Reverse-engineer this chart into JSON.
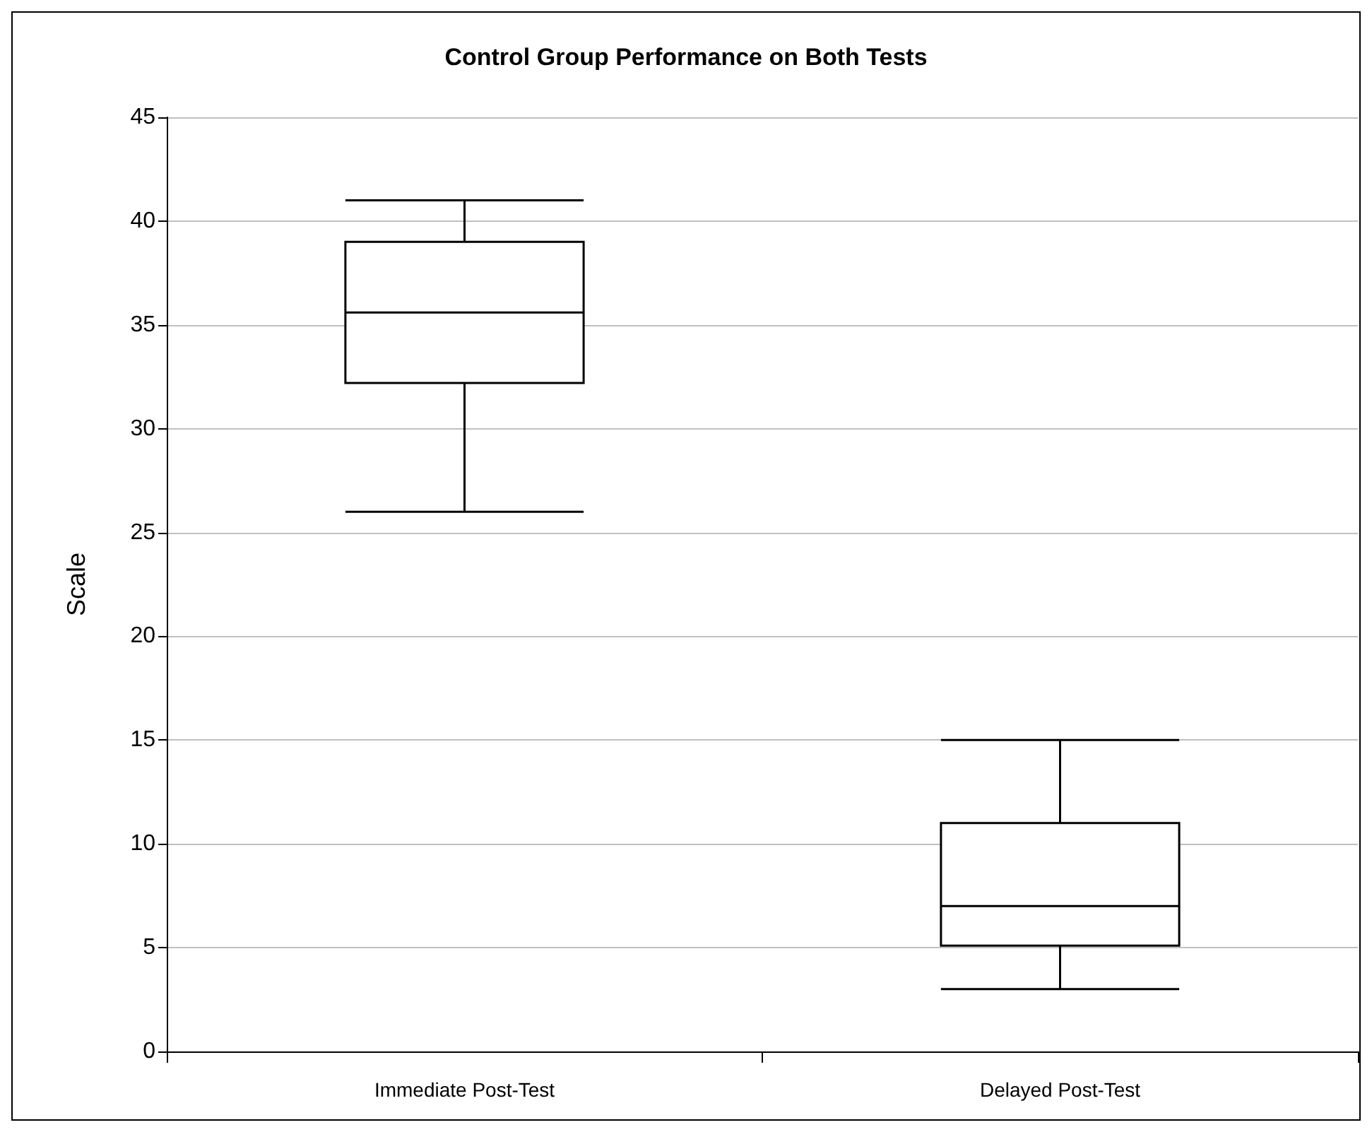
{
  "chart_data": {
    "type": "box",
    "title": "Control Group Performance on Both Tests",
    "ylabel": "Scale",
    "categories": [
      "Immediate Post-Test",
      "Delayed Post-Test"
    ],
    "boxes": [
      {
        "low": 26,
        "q1": 32.2,
        "median": 35.6,
        "q3": 39,
        "high": 41
      },
      {
        "low": 3,
        "q1": 5.1,
        "median": 7,
        "q3": 11,
        "high": 15
      }
    ],
    "ylim": [
      0,
      45
    ],
    "yticks": [
      0,
      5,
      10,
      15,
      20,
      25,
      30,
      35,
      40,
      45
    ],
    "grid": "y"
  }
}
